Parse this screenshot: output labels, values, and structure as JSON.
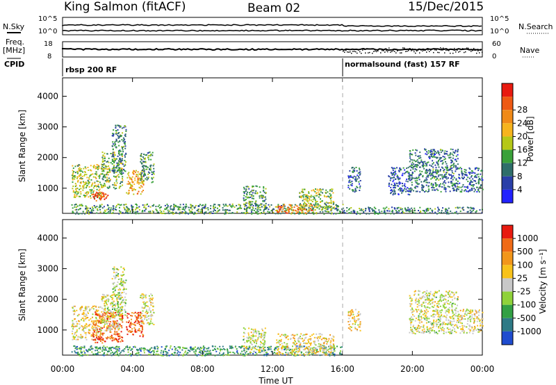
{
  "header": {
    "station": "King Salmon (fitACF)",
    "beam": "Beam 02",
    "date": "15/Dec/2015"
  },
  "top_panels": {
    "nsky_label": "N.Sky",
    "nsky_ticks": [
      "10^5",
      "10^0"
    ],
    "nsearch_label": "N.Search",
    "nsearch_ticks": [
      "10^5",
      "10^0"
    ],
    "freq_label": "Freq.",
    "freq_unit": "[MHz]",
    "freq_ticks": [
      "18",
      "8"
    ],
    "nave_label": "Nave",
    "nave_ticks": [
      "60",
      "0"
    ],
    "cpid_label": "CPID",
    "cpid_modes": [
      {
        "name": "rbsp 200 RF",
        "start_hour": 0
      },
      {
        "name": "normalsound (fast) 157 RF",
        "start_hour": 16
      }
    ]
  },
  "chart_data": [
    {
      "type": "heatmap",
      "title": "Power",
      "xlabel": "",
      "ylabel": "Slant Range [km]",
      "x_ticks": [
        "00:00",
        "04:00",
        "08:00",
        "12:00",
        "16:00",
        "20:00",
        "00:00"
      ],
      "x_range_hours": [
        0,
        24
      ],
      "y_ticks": [
        "1000",
        "2000",
        "3000",
        "4000"
      ],
      "y_range_km": [
        180,
        4600
      ],
      "colorbar": {
        "label": "Power [dB]",
        "ticks": [
          "4",
          "8",
          "12",
          "16",
          "20",
          "24",
          "28"
        ],
        "colors": [
          "#2222ff",
          "#2a3fa8",
          "#2f6e6a",
          "#3aa13a",
          "#b5c818",
          "#f6b41e",
          "#f08a18",
          "#ee5a14",
          "#e81a10"
        ]
      },
      "scatter_regions": [
        {
          "t0": 0.5,
          "t1": 2.2,
          "r0": 700,
          "r1": 1800,
          "level": 0.5
        },
        {
          "t0": 1.7,
          "t1": 2.6,
          "r0": 600,
          "r1": 900,
          "level": 0.85
        },
        {
          "t0": 2.2,
          "t1": 3.4,
          "r0": 1000,
          "r1": 2200,
          "level": 0.45
        },
        {
          "t0": 2.8,
          "t1": 3.6,
          "r0": 1500,
          "r1": 3100,
          "level": 0.3
        },
        {
          "t0": 3.6,
          "t1": 4.6,
          "r0": 800,
          "r1": 1600,
          "level": 0.65
        },
        {
          "t0": 4.4,
          "t1": 5.2,
          "r0": 1200,
          "r1": 2200,
          "level": 0.35
        },
        {
          "t0": 0.5,
          "t1": 16.0,
          "r0": 180,
          "r1": 500,
          "level": 0.35
        },
        {
          "t0": 10.3,
          "t1": 11.6,
          "r0": 300,
          "r1": 1100,
          "level": 0.35
        },
        {
          "t0": 12.2,
          "t1": 14.3,
          "r0": 200,
          "r1": 500,
          "level": 0.75
        },
        {
          "t0": 13.5,
          "t1": 15.5,
          "r0": 300,
          "r1": 1000,
          "level": 0.45
        },
        {
          "t0": 16.0,
          "t1": 24.0,
          "r0": 180,
          "r1": 400,
          "level": 0.3
        },
        {
          "t0": 16.3,
          "t1": 17.0,
          "r0": 900,
          "r1": 1700,
          "level": 0.2
        },
        {
          "t0": 18.6,
          "t1": 19.8,
          "r0": 800,
          "r1": 1700,
          "level": 0.2
        },
        {
          "t0": 19.8,
          "t1": 22.6,
          "r0": 900,
          "r1": 2300,
          "level": 0.28
        },
        {
          "t0": 22.6,
          "t1": 24.0,
          "r0": 900,
          "r1": 1700,
          "level": 0.25
        }
      ]
    },
    {
      "type": "heatmap",
      "title": "Velocity",
      "xlabel": "Time UT",
      "ylabel": "Slant Range [km]",
      "x_ticks": [
        "00:00",
        "04:00",
        "08:00",
        "12:00",
        "16:00",
        "20:00",
        "00:00"
      ],
      "x_range_hours": [
        0,
        24
      ],
      "y_ticks": [
        "1000",
        "2000",
        "3000",
        "4000"
      ],
      "y_range_km": [
        180,
        4600
      ],
      "colorbar": {
        "label": "Velocity [m s⁻¹]",
        "ticks": [
          "1000",
          "500",
          "100",
          "25",
          "-25",
          "-100",
          "-500",
          "-1000"
        ],
        "colors": [
          "#1f4ccf",
          "#2e7a86",
          "#32a044",
          "#8fd23a",
          "#c8c8c8",
          "#f8c21a",
          "#f2961a",
          "#ef6a16",
          "#e81a10"
        ]
      },
      "scatter_regions": [
        {
          "t0": 0.5,
          "t1": 2.2,
          "r0": 700,
          "r1": 1800,
          "level": 0.55
        },
        {
          "t0": 1.7,
          "t1": 3.4,
          "r0": 600,
          "r1": 1600,
          "level": 0.85
        },
        {
          "t0": 2.2,
          "t1": 3.4,
          "r0": 1000,
          "r1": 2200,
          "level": 0.5
        },
        {
          "t0": 2.8,
          "t1": 3.6,
          "r0": 1500,
          "r1": 3100,
          "level": 0.45
        },
        {
          "t0": 3.6,
          "t1": 4.6,
          "r0": 800,
          "r1": 1600,
          "level": 0.85
        },
        {
          "t0": 4.4,
          "t1": 5.2,
          "r0": 1200,
          "r1": 2200,
          "level": 0.5
        },
        {
          "t0": 0.5,
          "t1": 16.0,
          "r0": 180,
          "r1": 500,
          "level": 0.25
        },
        {
          "t0": 10.3,
          "t1": 11.6,
          "r0": 300,
          "r1": 1100,
          "level": 0.5
        },
        {
          "t0": 12.2,
          "t1": 15.5,
          "r0": 200,
          "r1": 900,
          "level": 0.55
        },
        {
          "t0": 16.3,
          "t1": 17.0,
          "r0": 1000,
          "r1": 1700,
          "level": 0.6
        },
        {
          "t0": 19.8,
          "t1": 22.6,
          "r0": 900,
          "r1": 2300,
          "level": 0.5
        },
        {
          "t0": 22.6,
          "t1": 24.0,
          "r0": 900,
          "r1": 1700,
          "level": 0.55
        }
      ]
    }
  ]
}
